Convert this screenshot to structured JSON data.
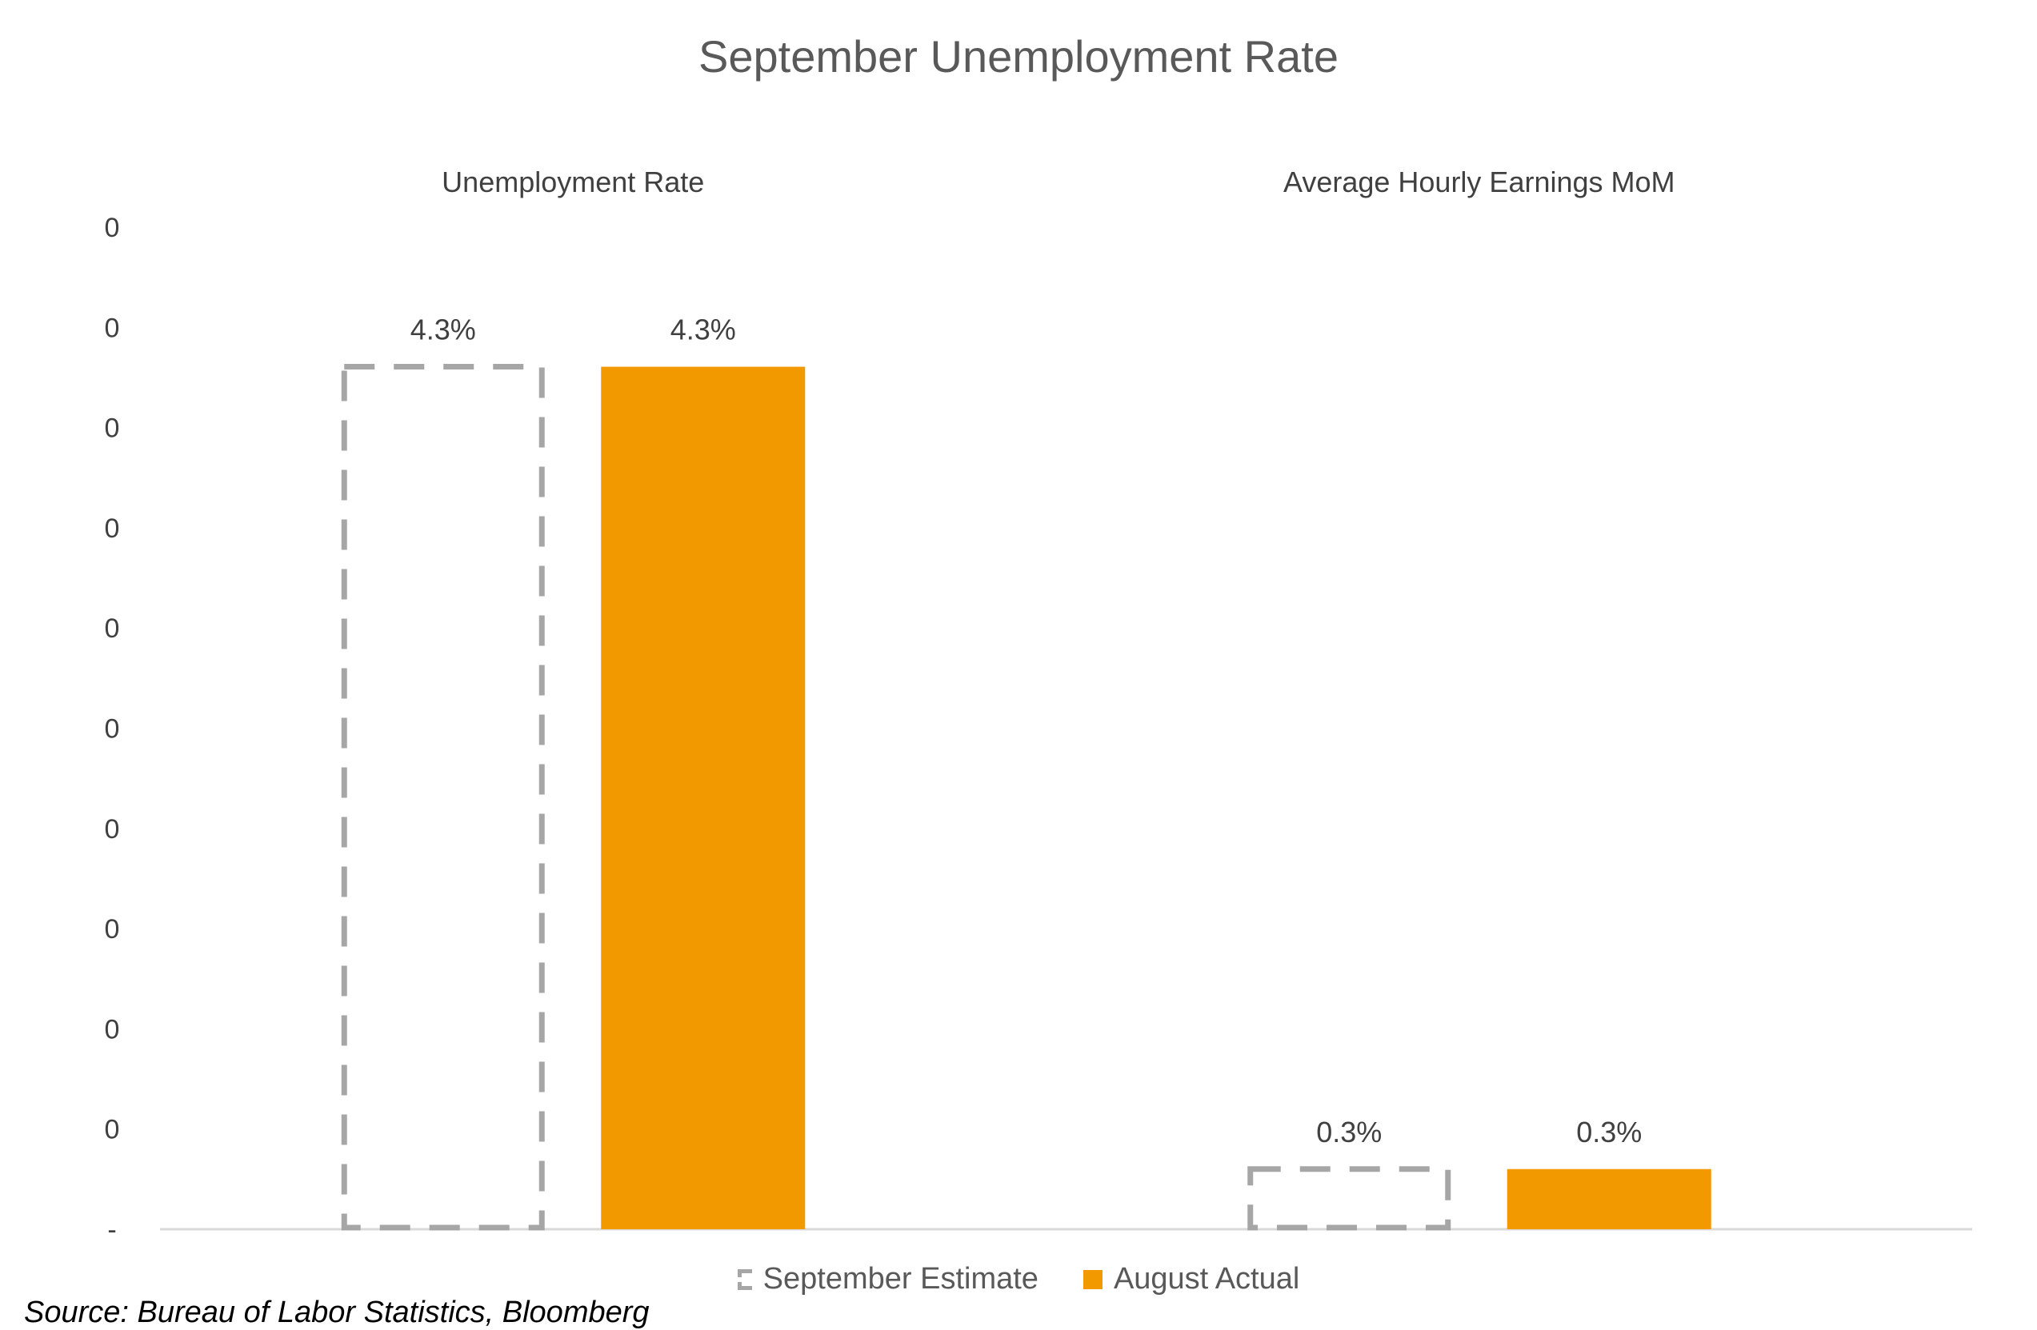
{
  "title": "September Unemployment Rate",
  "source": "Source: Bureau of Labor Statistics, Bloomberg",
  "legend": {
    "estimate": "September Estimate",
    "actual": "August Actual"
  },
  "colors": {
    "estimate": "#a6a6a6",
    "actual": "#f29900",
    "axis": "#d9d9d9"
  },
  "chart_data": {
    "type": "bar",
    "title": "September Unemployment Rate",
    "categories": [
      "Unemployment Rate",
      "Average Hourly Earnings MoM"
    ],
    "y_tick_labels": [
      "-",
      "0",
      "0",
      "0",
      "0",
      "0",
      "0",
      "0",
      "0",
      "0",
      "0"
    ],
    "ylim": [
      0,
      0.05
    ],
    "series": [
      {
        "name": "September Estimate",
        "values": [
          0.043,
          0.003
        ],
        "labels": [
          "4.3%",
          "0.3%"
        ],
        "style": "dashed-outline"
      },
      {
        "name": "August Actual",
        "values": [
          0.043,
          0.003
        ],
        "labels": [
          "4.3%",
          "0.3%"
        ],
        "style": "solid"
      }
    ],
    "legend_position": "bottom",
    "grid": false
  }
}
